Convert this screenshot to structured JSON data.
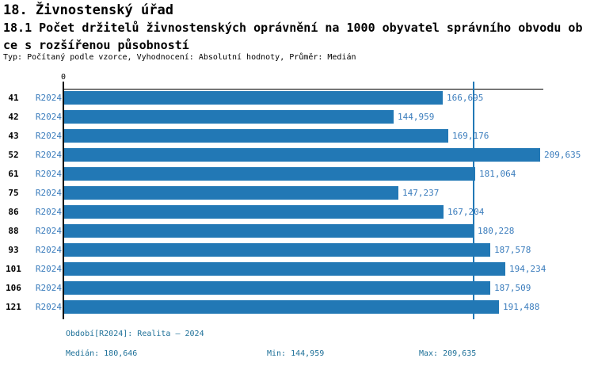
{
  "header": {
    "title": "18. Živnostenský úřad",
    "subtitle_line1": "18.1 Počet držitelů živnostenských oprávnění na 1000 obyvatel správního obvodu ob",
    "subtitle_line2": "ce s rozšířenou působností",
    "meta_line": "Typ: Počítaný podle vzorce, Vyhodnocení: Absolutní hodnoty, Průměr: Medián"
  },
  "colors": {
    "bar": "#2278b5",
    "median_line": "#2278b5",
    "value_text": "#3a7cbc",
    "series_text": "#3a7cbc",
    "footer_text": "#1e7098",
    "axis": "#000000"
  },
  "chart_data": {
    "type": "bar",
    "orientation": "horizontal",
    "title": "18.1 Počet držitelů živnostenských oprávnění na 1000 obyvatel správního obvodu obce s rozšířenou působností",
    "origin_label": "0",
    "series_label": "R2024",
    "categories": [
      "41",
      "42",
      "43",
      "52",
      "61",
      "75",
      "86",
      "88",
      "93",
      "101",
      "106",
      "121"
    ],
    "values": [
      166.695,
      144.959,
      169.176,
      209.635,
      181.064,
      147.237,
      167.204,
      180.228,
      187.578,
      194.234,
      187.509,
      191.488
    ],
    "value_labels": [
      "166,695",
      "144,959",
      "169,176",
      "209,635",
      "181,064",
      "147,237",
      "167,204",
      "180,228",
      "187,578",
      "194,234",
      "187,509",
      "191,488"
    ],
    "median": 180.646,
    "min": 144.959,
    "max": 209.635,
    "xlim": [
      0,
      211
    ],
    "grid": false,
    "legend": false
  },
  "footer": {
    "period_line": "Období[R2024]: Realita – 2024",
    "median_label": "Medián: 180,646",
    "min_label": "Min: 144,959",
    "max_label": "Max: 209,635"
  }
}
